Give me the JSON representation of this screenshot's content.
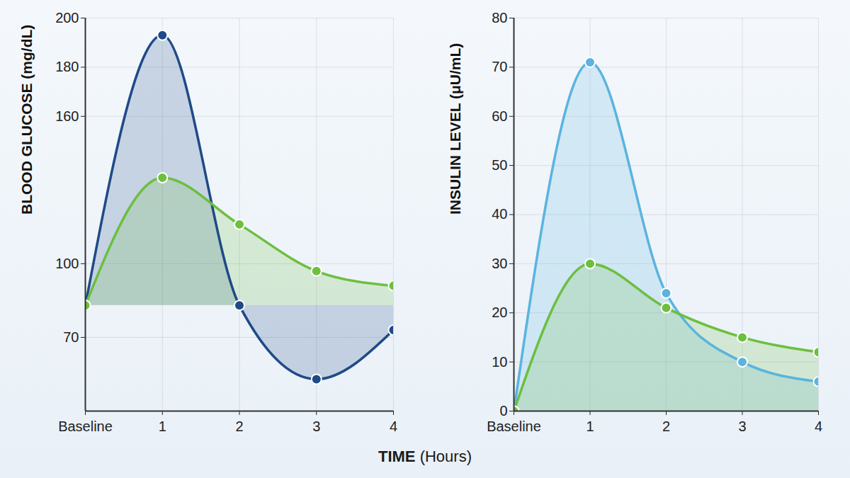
{
  "chart_data": [
    {
      "type": "line",
      "ylabel": "BLOOD GLUCOSE (mg/dL)",
      "x": [
        0,
        1,
        2,
        3,
        4
      ],
      "xlim": [
        0,
        4
      ],
      "xticks": [
        {
          "value": 0,
          "label": "Baseline"
        },
        1,
        2,
        3,
        4
      ],
      "ylim": [
        40,
        200
      ],
      "yticks": [
        70,
        100,
        160,
        180,
        200
      ],
      "grid": true,
      "series": [
        {
          "color": "#1f4a87",
          "marker": "circle",
          "values": [
            83,
            193,
            83,
            53,
            73
          ]
        },
        {
          "color": "#6cbf3f",
          "marker": "circle",
          "values": [
            83,
            135,
            116,
            97,
            91
          ]
        }
      ]
    },
    {
      "type": "line",
      "ylabel": "INSULIN LEVEL (μU/mL)",
      "x": [
        0,
        1,
        2,
        3,
        4
      ],
      "xlim": [
        0,
        4
      ],
      "xticks": [
        {
          "value": 0,
          "label": "Baseline"
        },
        1,
        2,
        3,
        4
      ],
      "ylim": [
        0,
        80
      ],
      "yticks": [
        0,
        10,
        20,
        30,
        40,
        50,
        60,
        70,
        80
      ],
      "grid": true,
      "series": [
        {
          "color": "#5ab4df",
          "marker": "circle",
          "values": [
            0,
            71,
            24,
            10,
            6
          ]
        },
        {
          "color": "#6cbf3f",
          "marker": "circle",
          "values": [
            0,
            30,
            21,
            15,
            12
          ]
        }
      ]
    }
  ],
  "x_label": "TIME (Hours)"
}
